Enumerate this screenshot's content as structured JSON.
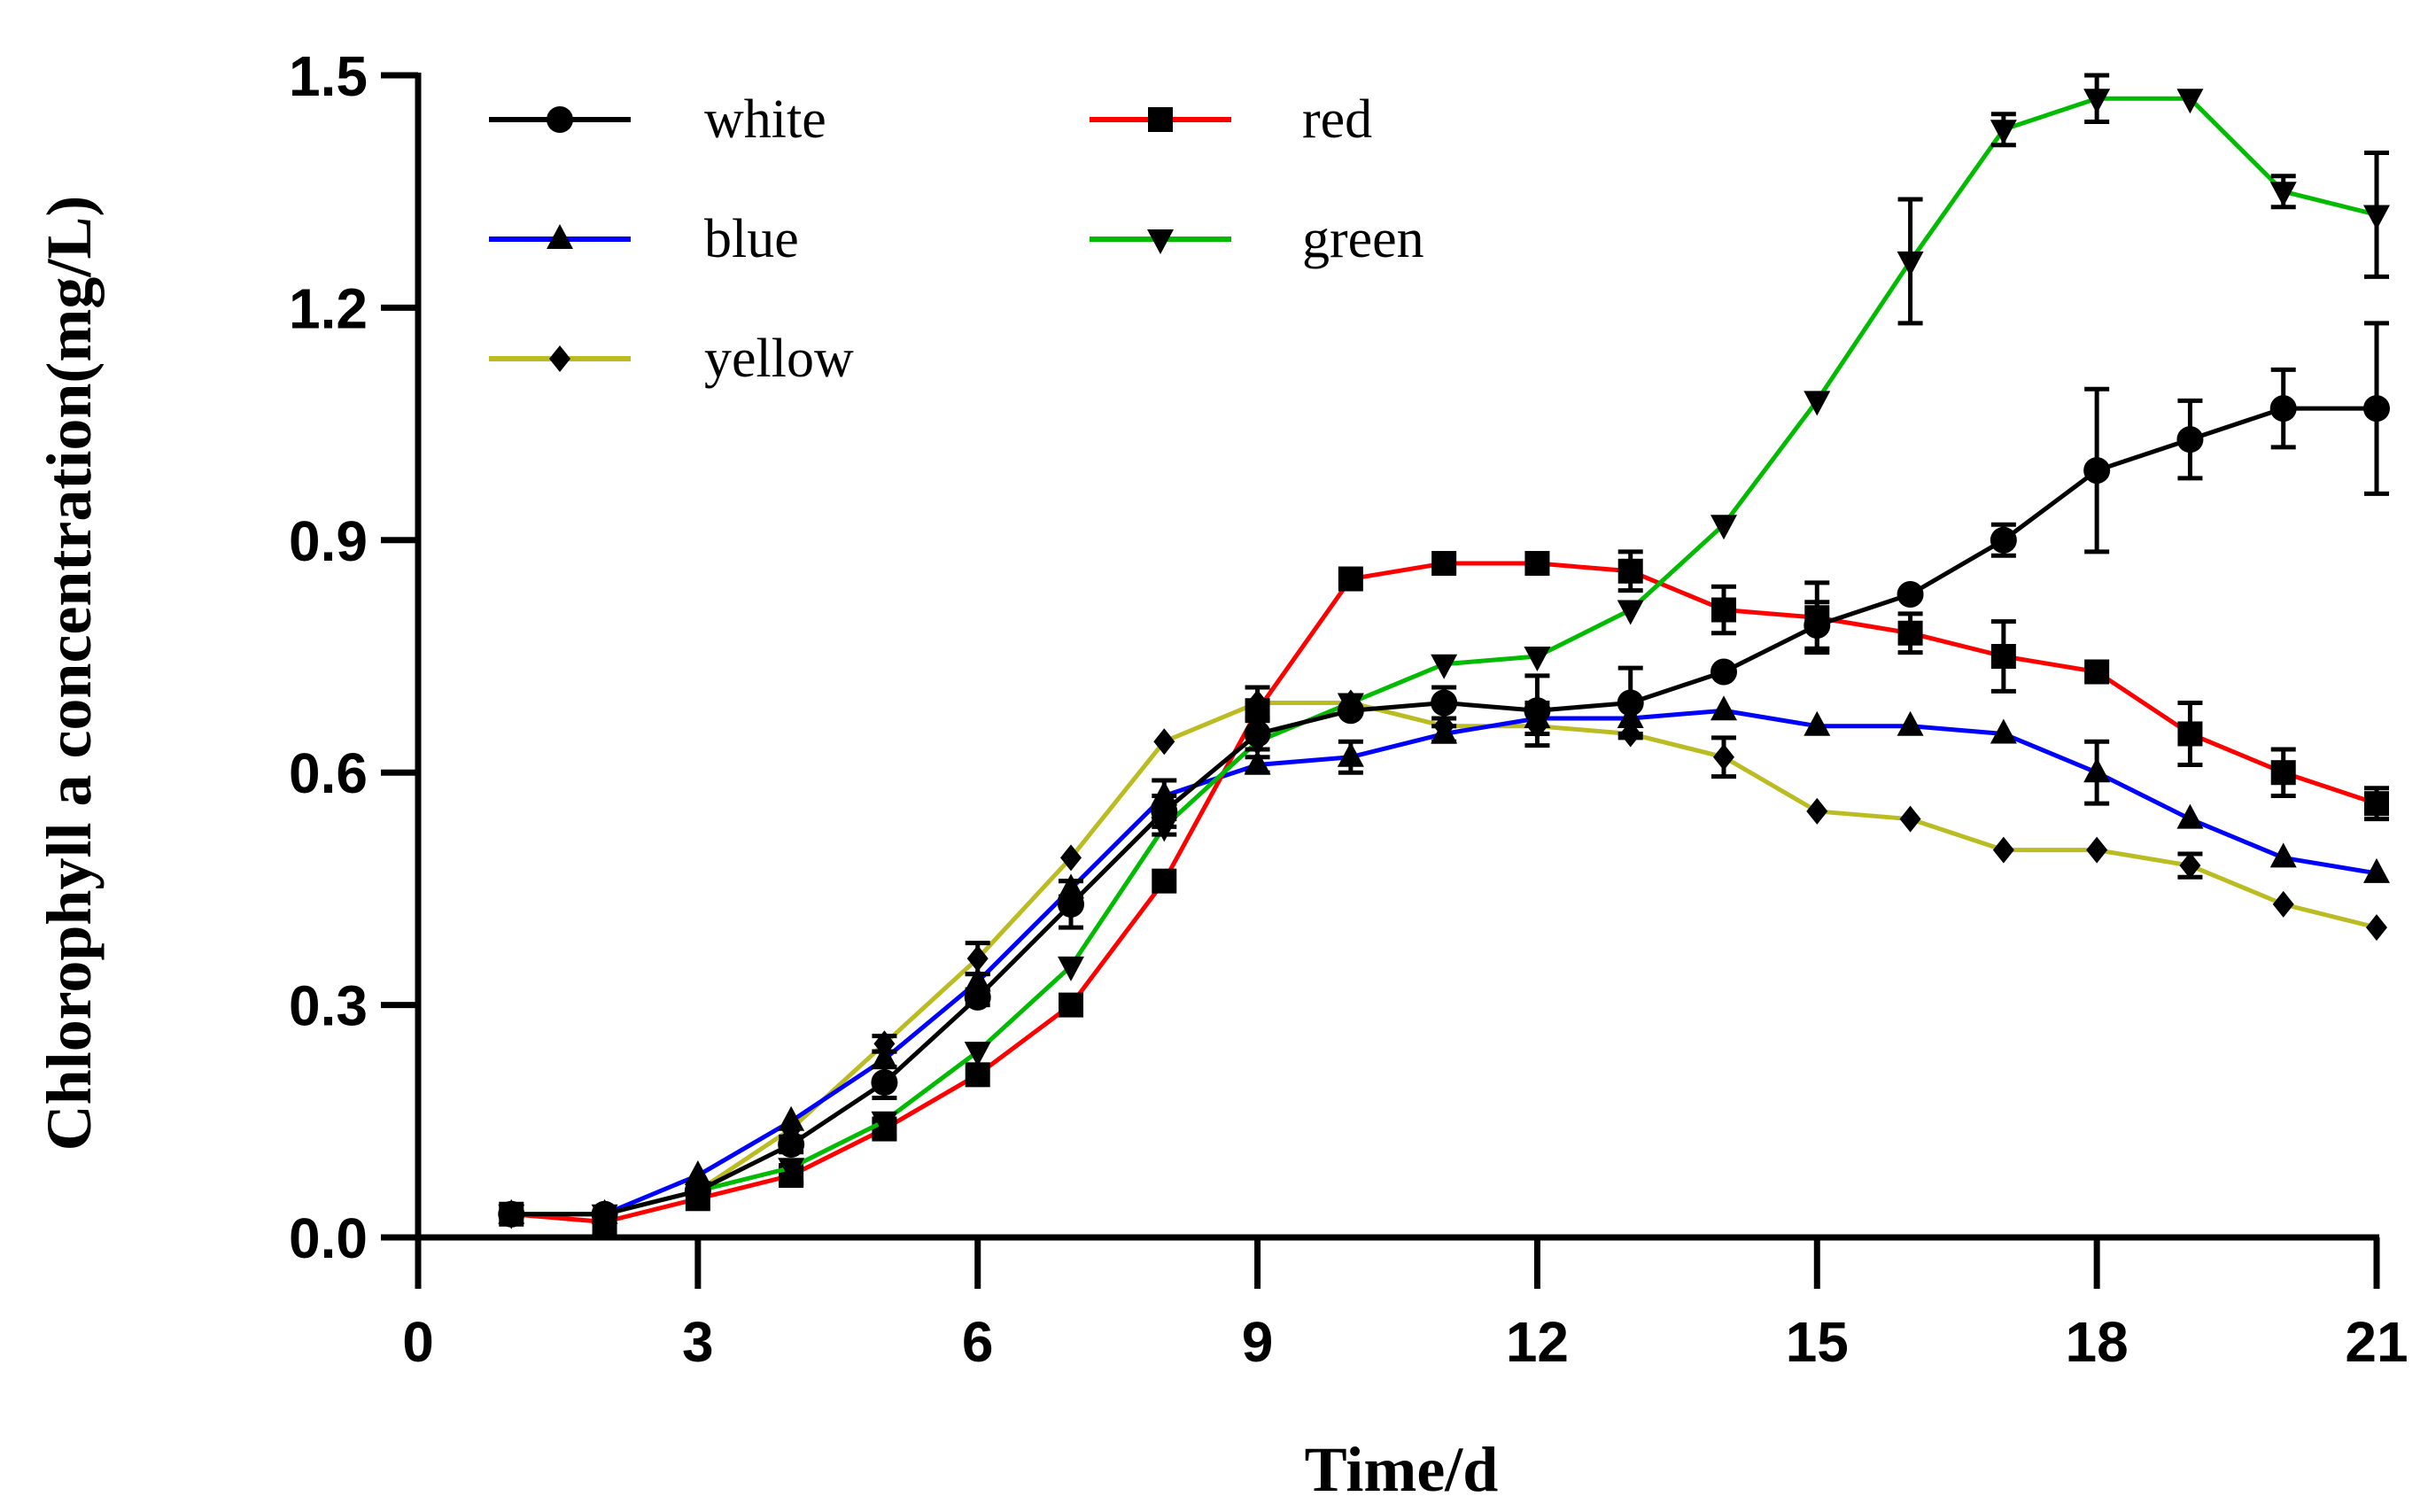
{
  "chart_data": {
    "type": "line",
    "title": "",
    "xlabel": "Time/d",
    "ylabel": "Chlorophyll a concentration(mg/L)",
    "xlim": [
      0,
      21
    ],
    "ylim": [
      0,
      1.5
    ],
    "xticks": [
      0,
      3,
      6,
      9,
      12,
      15,
      18,
      21
    ],
    "xtick_labels": [
      "0",
      "3",
      "6",
      "9",
      "12",
      "15",
      "18",
      "21"
    ],
    "yticks": [
      0,
      0.3,
      0.6,
      0.9,
      1.2,
      1.5
    ],
    "ytick_labels": [
      "0.0",
      "0.3",
      "0.6",
      "0.9",
      "1.2",
      "1.5"
    ],
    "legend_position": "top-left",
    "x": [
      1,
      2,
      3,
      4,
      5,
      6,
      7,
      8,
      9,
      10,
      11,
      12,
      13,
      14,
      15,
      16,
      17,
      18,
      19,
      20,
      21
    ],
    "series": [
      {
        "name": "white",
        "color": "#000000",
        "marker": "circle",
        "values": [
          0.03,
          0.03,
          0.06,
          0.12,
          0.2,
          0.31,
          0.43,
          0.55,
          0.65,
          0.68,
          0.69,
          0.68,
          0.69,
          0.73,
          0.79,
          0.83,
          0.9,
          0.99,
          1.03,
          1.07,
          1.07
        ],
        "errors": [
          0,
          0,
          0,
          0.01,
          0.02,
          0.01,
          0.03,
          0.02,
          0.02,
          0,
          0.02,
          0.045,
          0.045,
          0,
          0.03,
          0,
          0.02,
          0.105,
          0.05,
          0.05,
          0.11
        ]
      },
      {
        "name": "red",
        "color": "#ff0000",
        "marker": "square",
        "values": [
          0.03,
          0.02,
          0.05,
          0.08,
          0.14,
          0.21,
          0.3,
          0.46,
          0.68,
          0.85,
          0.87,
          0.87,
          0.86,
          0.81,
          0.8,
          0.78,
          0.75,
          0.73,
          0.65,
          0.6,
          0.56
        ],
        "errors": [
          0,
          0,
          0,
          0.01,
          0.01,
          0,
          0,
          0,
          0.03,
          0,
          0,
          0,
          0.025,
          0.03,
          0.045,
          0.025,
          0.045,
          0,
          0.04,
          0.03,
          0.02
        ]
      },
      {
        "name": "blue",
        "color": "#0000ff",
        "marker": "triangle-up",
        "values": [
          0.03,
          0.03,
          0.08,
          0.15,
          0.23,
          0.33,
          0.45,
          0.57,
          0.61,
          0.62,
          0.65,
          0.67,
          0.67,
          0.68,
          0.66,
          0.66,
          0.65,
          0.6,
          0.54,
          0.49,
          0.47
        ],
        "errors": [
          0,
          0,
          0,
          0,
          0.01,
          0.01,
          0.01,
          0.02,
          0.01,
          0.02,
          0.01,
          0.02,
          0.02,
          0,
          0,
          0,
          0,
          0.04,
          0,
          0,
          0
        ]
      },
      {
        "name": "green",
        "color": "#00bb00",
        "marker": "triangle-down",
        "values": [
          0.03,
          0.03,
          0.06,
          0.09,
          0.15,
          0.24,
          0.35,
          0.53,
          0.64,
          0.69,
          0.74,
          0.75,
          0.81,
          0.92,
          1.08,
          1.26,
          1.43,
          1.47,
          1.47,
          1.35,
          1.32
        ],
        "errors": [
          0,
          0,
          0,
          0,
          0,
          0,
          0,
          0.01,
          0,
          0,
          0,
          0,
          0,
          0,
          0,
          0.08,
          0.02,
          0.03,
          0,
          0.02,
          0.08
        ]
      },
      {
        "name": "yellow",
        "color": "#bbbb22",
        "marker": "diamond",
        "values": [
          0.03,
          0.03,
          0.06,
          0.14,
          0.25,
          0.36,
          0.49,
          0.64,
          0.69,
          0.69,
          0.66,
          0.66,
          0.65,
          0.62,
          0.55,
          0.54,
          0.5,
          0.5,
          0.48,
          0.43,
          0.4
        ],
        "errors": [
          0,
          0,
          0,
          0,
          0.01,
          0.02,
          0,
          0,
          0,
          0,
          0,
          0,
          0,
          0.025,
          0,
          0,
          0,
          0,
          0.015,
          0,
          0
        ]
      }
    ],
    "legend_order": [
      "white",
      "red",
      "blue",
      "green",
      "yellow"
    ]
  }
}
